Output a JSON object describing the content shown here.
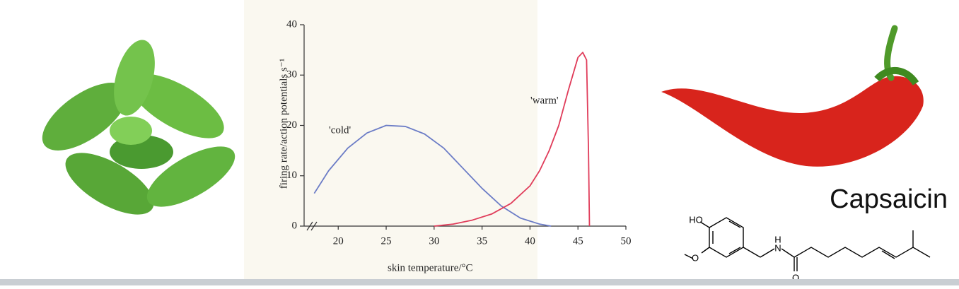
{
  "chart_data": {
    "type": "line",
    "ylabel": "firing rate/action potentials s⁻¹",
    "xlabel": "skin temperature/°C",
    "xlim": [
      16,
      50
    ],
    "xticks": [
      20,
      25,
      30,
      35,
      40,
      45,
      50
    ],
    "ylim": [
      0,
      40
    ],
    "yticks": [
      0,
      10,
      20,
      30,
      40
    ],
    "grid": false,
    "series": [
      {
        "name": "'cold'",
        "color": "#6b7cc6",
        "x": [
          17.5,
          19,
          21,
          23,
          25,
          27,
          29,
          31,
          33,
          35,
          37,
          39,
          41,
          42.2
        ],
        "values": [
          6.5,
          11,
          15.5,
          18.5,
          20,
          19.8,
          18.3,
          15.5,
          11.5,
          7.5,
          4,
          1.6,
          0.4,
          0
        ]
      },
      {
        "name": "'warm'",
        "color": "#e03c5a",
        "x": [
          30,
          32,
          34,
          36,
          38,
          40,
          41,
          42,
          43,
          44,
          45,
          45.5,
          45.9,
          46.1,
          46.2
        ],
        "values": [
          0,
          0.4,
          1.2,
          2.4,
          4.5,
          8,
          11,
          15,
          20,
          27,
          33.5,
          34.5,
          33,
          15,
          0
        ]
      }
    ]
  },
  "caption": "Capsaicin",
  "molecule_labels": [
    "HO",
    "O",
    "H",
    "N",
    "O"
  ]
}
